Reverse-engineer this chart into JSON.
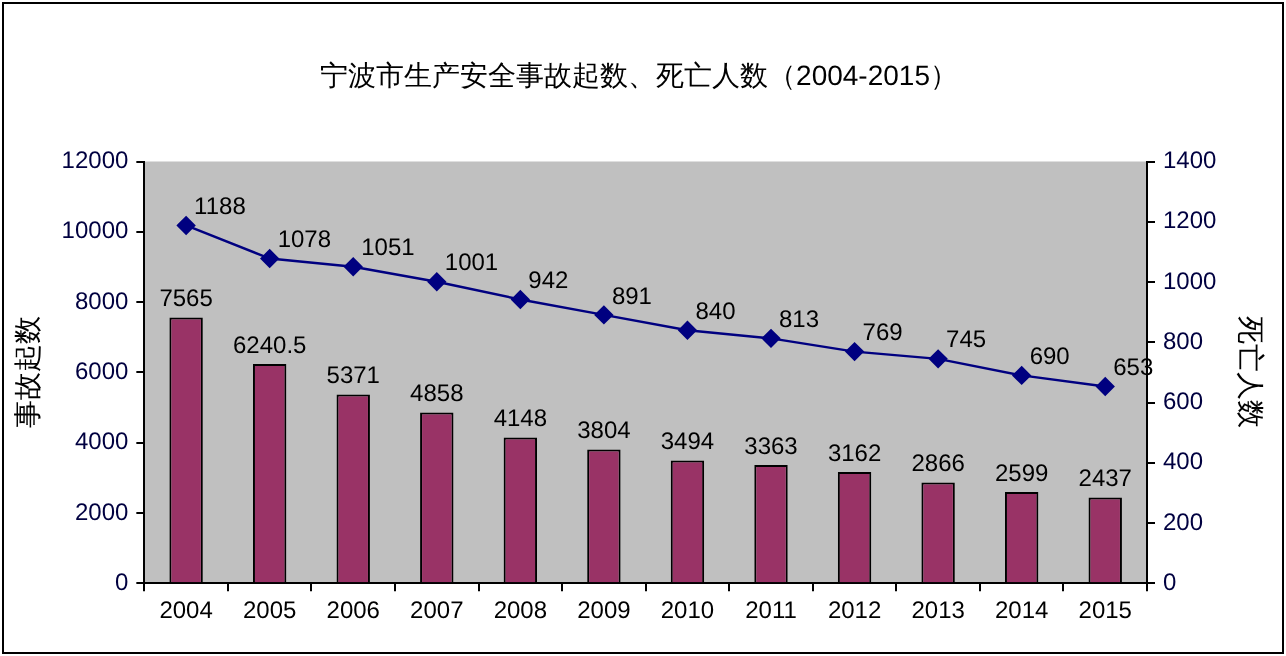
{
  "chart_data": {
    "type": "bar",
    "title": "宁波市生产安全事故起数、死亡人数（2004-2015）",
    "ylabel": "事故起数",
    "y2label": "死亡人数",
    "categories": [
      "2004",
      "2005",
      "2006",
      "2007",
      "2008",
      "2009",
      "2010",
      "2011",
      "2012",
      "2013",
      "2014",
      "2015"
    ],
    "series": [
      {
        "color": "#993366",
        "values": [
          7565,
          6240.5,
          5371,
          4858,
          4148,
          3804,
          3494,
          3363,
          3162,
          2866,
          2599,
          2437
        ]
      },
      {
        "type": "line",
        "axis": "y2",
        "color": "#000080",
        "marker": "diamond",
        "line_style": "solid",
        "values": [
          1188,
          1078,
          1051,
          1001,
          942,
          891,
          840,
          813,
          769,
          745,
          690,
          653
        ]
      }
    ],
    "ylim": [
      0,
      12000
    ],
    "yticks": [
      0,
      2000,
      4000,
      6000,
      8000,
      10000,
      12000
    ],
    "y2lim": [
      0,
      1400
    ],
    "y2ticks": [
      0,
      200,
      400,
      600,
      800,
      1000,
      1200,
      1400
    ],
    "grid": false,
    "legend": false,
    "data_labels": true
  }
}
